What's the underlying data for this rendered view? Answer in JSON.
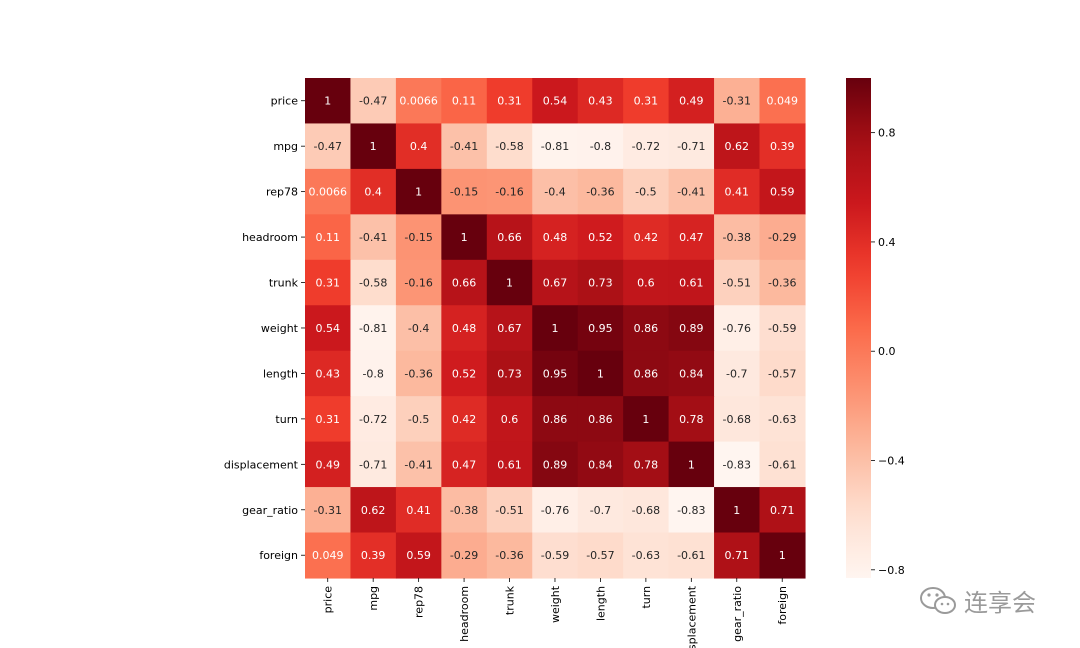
{
  "chart_data": {
    "type": "heatmap",
    "title": "",
    "labels": [
      "price",
      "mpg",
      "rep78",
      "headroom",
      "trunk",
      "weight",
      "length",
      "turn",
      "displacement",
      "gear_ratio",
      "foreign"
    ],
    "x_tick_labels": [
      "price",
      "mpg",
      "rep78",
      "headroom",
      "trunk",
      "weight",
      "length",
      "turn",
      "isplacement",
      "gear_ratio",
      "foreign"
    ],
    "values": [
      [
        1,
        -0.47,
        0.0066,
        0.11,
        0.31,
        0.54,
        0.43,
        0.31,
        0.49,
        -0.31,
        0.049
      ],
      [
        -0.47,
        1,
        0.4,
        -0.41,
        -0.58,
        -0.81,
        -0.8,
        -0.72,
        -0.71,
        0.62,
        0.39
      ],
      [
        0.0066,
        0.4,
        1,
        -0.15,
        -0.16,
        -0.4,
        -0.36,
        -0.5,
        -0.41,
        0.41,
        0.59
      ],
      [
        0.11,
        -0.41,
        -0.15,
        1,
        0.66,
        0.48,
        0.52,
        0.42,
        0.47,
        -0.38,
        -0.29
      ],
      [
        0.31,
        -0.58,
        -0.16,
        0.66,
        1,
        0.67,
        0.73,
        0.6,
        0.61,
        -0.51,
        -0.36
      ],
      [
        0.54,
        -0.81,
        -0.4,
        0.48,
        0.67,
        1,
        0.95,
        0.86,
        0.89,
        -0.76,
        -0.59
      ],
      [
        0.43,
        -0.8,
        -0.36,
        0.52,
        0.73,
        0.95,
        1,
        0.86,
        0.84,
        -0.7,
        -0.57
      ],
      [
        0.31,
        -0.72,
        -0.5,
        0.42,
        0.6,
        0.86,
        0.86,
        1,
        0.78,
        -0.68,
        -0.63
      ],
      [
        0.49,
        -0.71,
        -0.41,
        0.47,
        0.61,
        0.89,
        0.84,
        0.78,
        1,
        -0.83,
        -0.61
      ],
      [
        -0.31,
        0.62,
        0.41,
        -0.38,
        -0.51,
        -0.76,
        -0.7,
        -0.68,
        -0.83,
        1,
        0.71
      ],
      [
        0.049,
        0.39,
        0.59,
        -0.29,
        -0.36,
        -0.59,
        -0.57,
        -0.63,
        -0.61,
        0.71,
        1
      ]
    ],
    "colormap": "Reds",
    "vmin": -0.83,
    "vmax": 1,
    "colorbar_ticks": [
      0.8,
      0.4,
      0.0,
      -0.4,
      -0.8
    ],
    "colorbar_tick_labels": [
      "0.8",
      "0.4",
      "0.0",
      "−0.4",
      "−0.8"
    ]
  },
  "watermark": {
    "text": "连享会",
    "icon": "wechat-icon"
  }
}
